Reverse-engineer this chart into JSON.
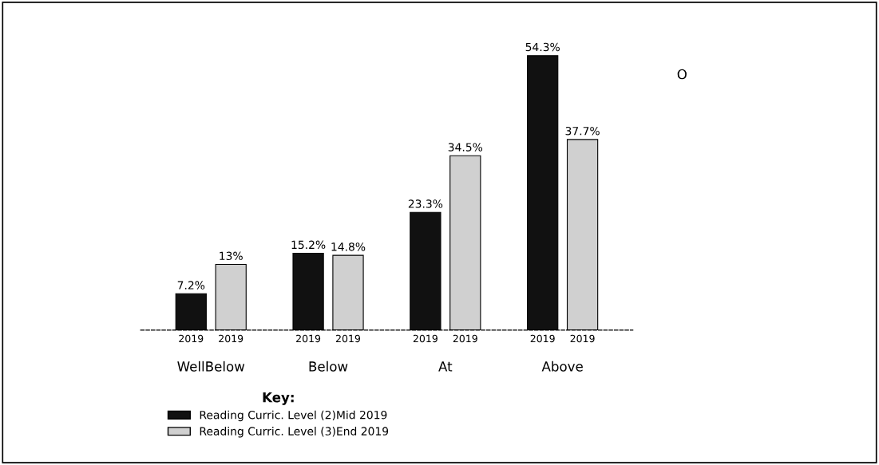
{
  "chart_data": {
    "type": "bar",
    "categories": [
      "WellBelow",
      "Below",
      "At",
      "Above"
    ],
    "series": [
      {
        "name": "Reading Curric. Level (2)Mid 2019",
        "color": "#111111",
        "values": [
          7.2,
          15.2,
          23.3,
          54.3
        ],
        "value_labels": [
          "7.2%",
          "15.2%",
          "23.3%",
          "54.3%"
        ]
      },
      {
        "name": "Reading Curric. Level (3)End 2019",
        "color": "#d0d0d0",
        "values": [
          13,
          14.8,
          34.5,
          37.7
        ],
        "value_labels": [
          "13%",
          "14.8%",
          "34.5%",
          "37.7%"
        ]
      }
    ],
    "legend": "bottom",
    "legend_title": "Key:",
    "grid": false,
    "annotations": [
      "2019",
      "2019",
      "2019",
      "2019",
      "2019",
      "2019",
      "2019",
      "2019",
      "O"
    ]
  }
}
